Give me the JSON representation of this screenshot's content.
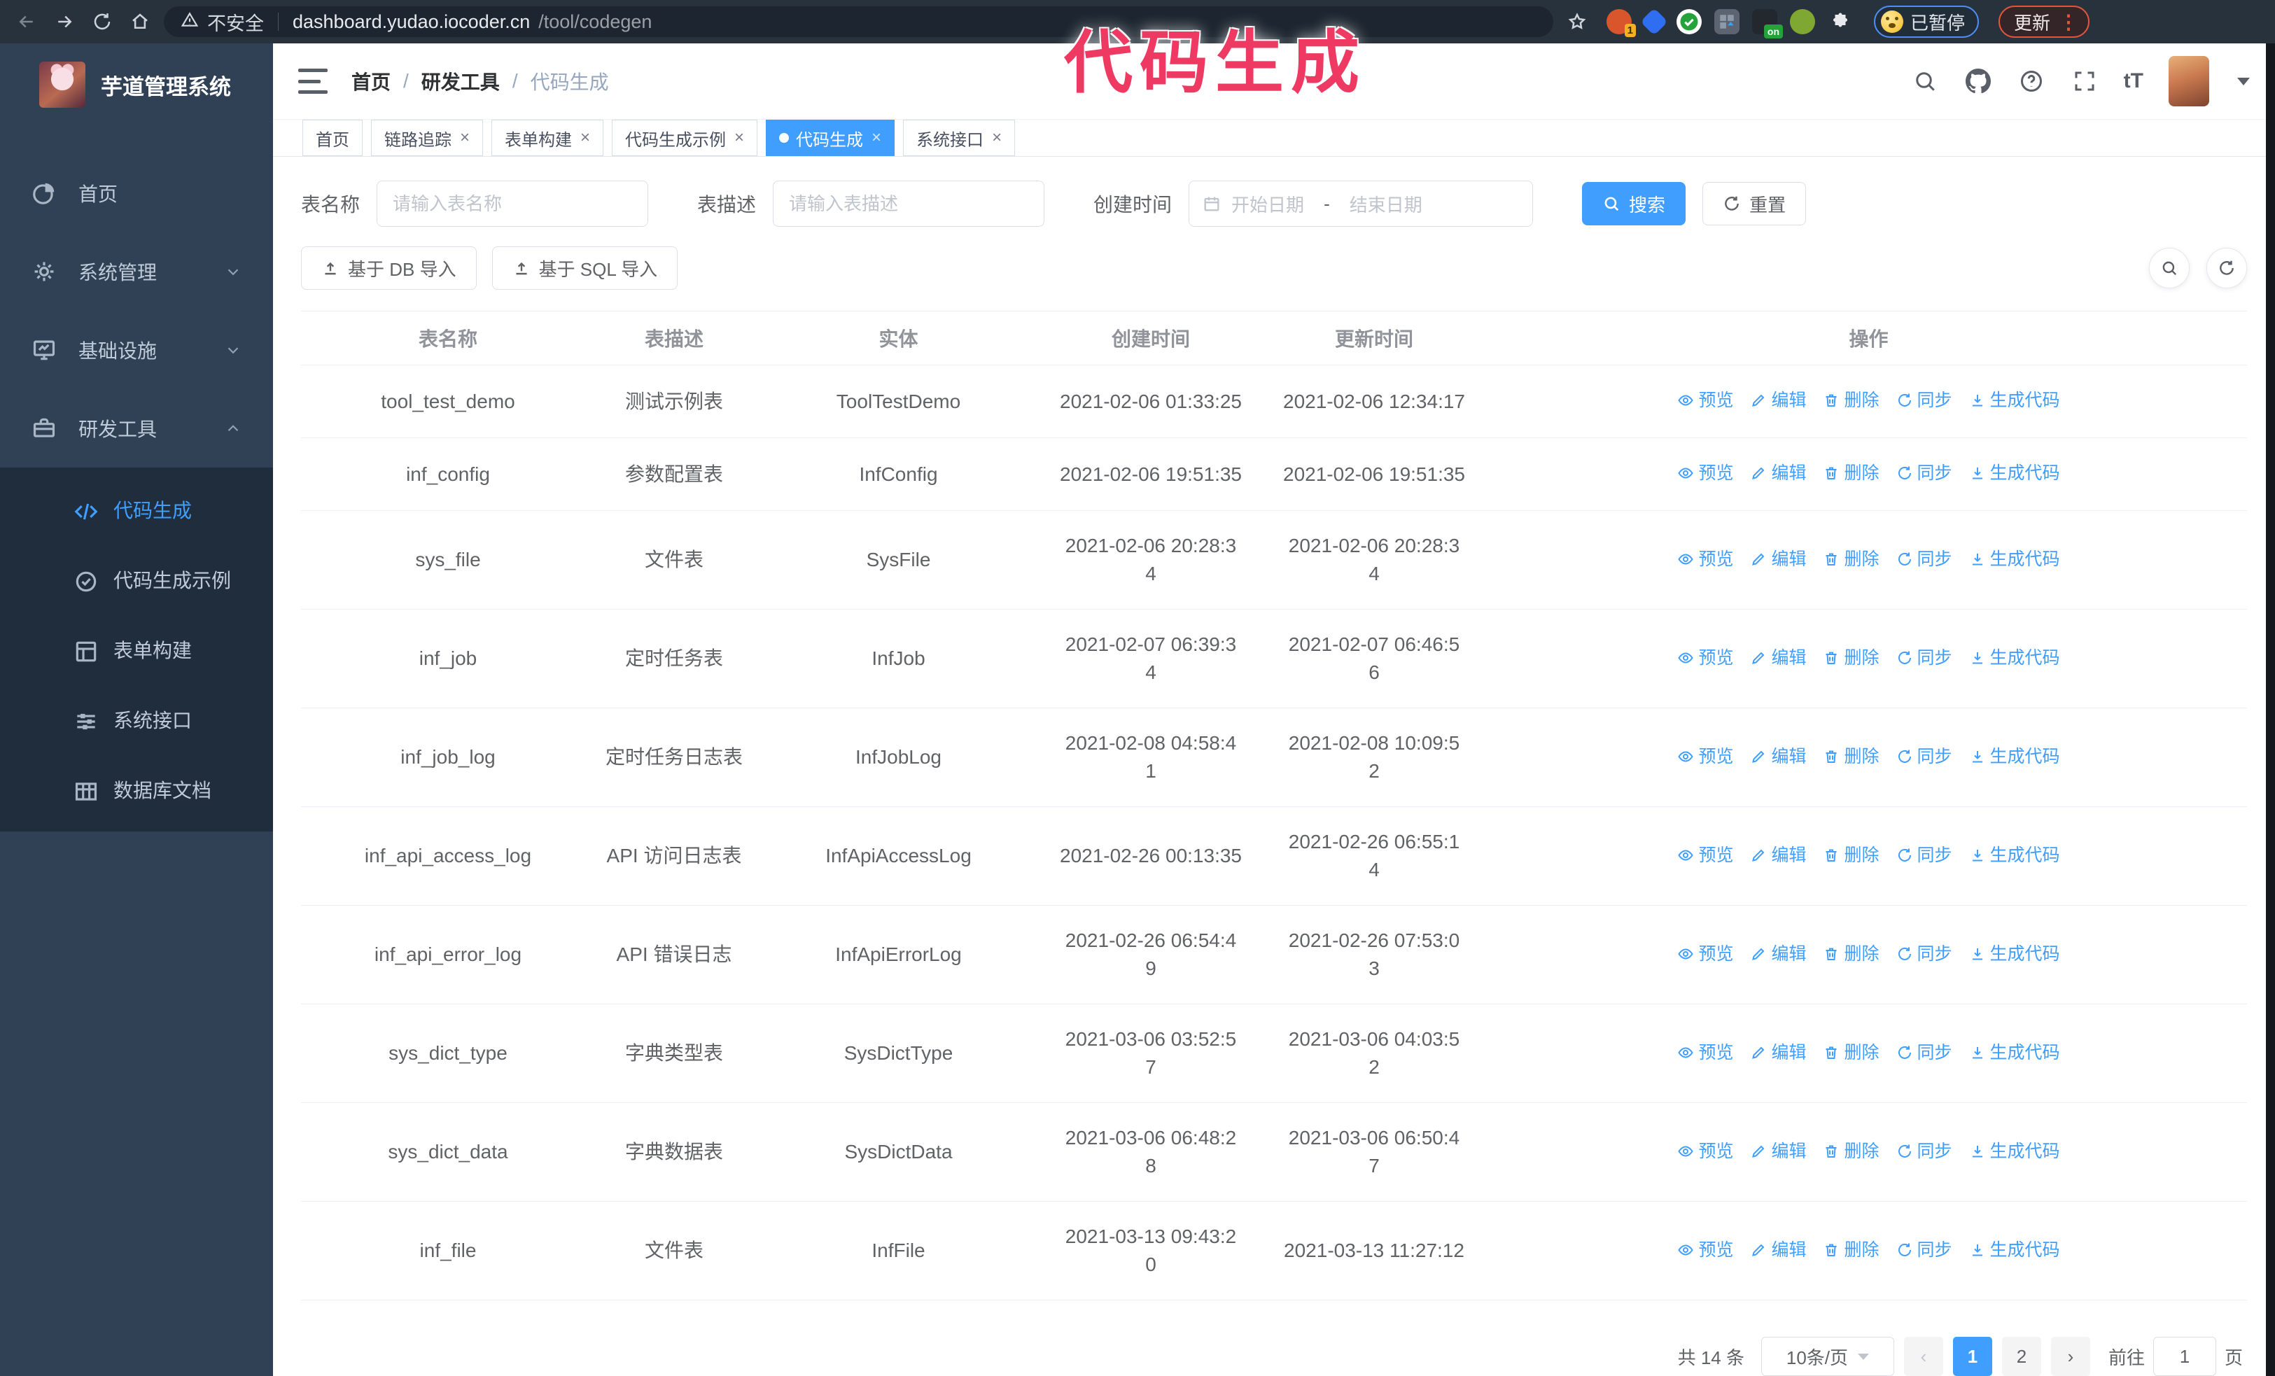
{
  "browser": {
    "security_label": "不安全",
    "url_host": "dashboard.yudao.iocoder.cn",
    "url_path": "/tool/codegen",
    "extension_badge": "1",
    "extension_on_badge": "on",
    "paused_badge": "已暂停",
    "update_button": "更新"
  },
  "annotation": {
    "text": "代码生成",
    "color": "#ee3a63"
  },
  "sidebar": {
    "logo_title": "芋道管理系统",
    "items": [
      {
        "label": "首页",
        "icon": "dashboard-icon",
        "chevron": ""
      },
      {
        "label": "系统管理",
        "icon": "gear-icon",
        "chevron": "down"
      },
      {
        "label": "基础设施",
        "icon": "infra-icon",
        "chevron": "down"
      },
      {
        "label": "研发工具",
        "icon": "tools-icon",
        "chevron": "up"
      }
    ],
    "subitems": [
      {
        "label": "代码生成",
        "icon": "code-icon",
        "active": true
      },
      {
        "label": "代码生成示例",
        "icon": "example-icon",
        "active": false
      },
      {
        "label": "表单构建",
        "icon": "form-icon",
        "active": false
      },
      {
        "label": "系统接口",
        "icon": "api-icon",
        "active": false
      },
      {
        "label": "数据库文档",
        "icon": "dbdoc-icon",
        "active": false
      }
    ]
  },
  "header": {
    "breadcrumb": [
      "首页",
      "研发工具",
      "代码生成"
    ]
  },
  "tabs": [
    {
      "label": "首页",
      "closable": false,
      "active": false
    },
    {
      "label": "链路追踪",
      "closable": true,
      "active": false
    },
    {
      "label": "表单构建",
      "closable": true,
      "active": false
    },
    {
      "label": "代码生成示例",
      "closable": true,
      "active": false
    },
    {
      "label": "代码生成",
      "closable": true,
      "active": true
    },
    {
      "label": "系统接口",
      "closable": true,
      "active": false
    }
  ],
  "search": {
    "name_label": "表名称",
    "name_placeholder": "请输入表名称",
    "desc_label": "表描述",
    "desc_placeholder": "请输入表描述",
    "time_label": "创建时间",
    "start_placeholder": "开始日期",
    "range_separator": "-",
    "end_placeholder": "结束日期",
    "search_button": "搜索",
    "reset_button": "重置"
  },
  "toolbar": {
    "import_db": "基于 DB 导入",
    "import_sql": "基于 SQL 导入"
  },
  "table": {
    "columns": [
      "表名称",
      "表描述",
      "实体",
      "创建时间",
      "更新时间",
      "操作"
    ],
    "actions": [
      "预览",
      "编辑",
      "删除",
      "同步",
      "生成代码"
    ],
    "rows": [
      {
        "name": "tool_test_demo",
        "desc": "测试示例表",
        "entity": "ToolTestDemo",
        "created": "2021-02-06 01:33:25",
        "updated": "2021-02-06 12:34:17"
      },
      {
        "name": "inf_config",
        "desc": "参数配置表",
        "entity": "InfConfig",
        "created": "2021-02-06 19:51:35",
        "updated": "2021-02-06 19:51:35"
      },
      {
        "name": "sys_file",
        "desc": "文件表",
        "entity": "SysFile",
        "created": "2021-02-06 20:28:3\n4",
        "updated": "2021-02-06 20:28:3\n4"
      },
      {
        "name": "inf_job",
        "desc": "定时任务表",
        "entity": "InfJob",
        "created": "2021-02-07 06:39:3\n4",
        "updated": "2021-02-07 06:46:5\n6"
      },
      {
        "name": "inf_job_log",
        "desc": "定时任务日志表",
        "entity": "InfJobLog",
        "created": "2021-02-08 04:58:4\n1",
        "updated": "2021-02-08 10:09:5\n2"
      },
      {
        "name": "inf_api_access_log",
        "desc": "API 访问日志表",
        "entity": "InfApiAccessLog",
        "created": "2021-02-26 00:13:35",
        "updated": "2021-02-26 06:55:1\n4"
      },
      {
        "name": "inf_api_error_log",
        "desc": "API 错误日志",
        "entity": "InfApiErrorLog",
        "created": "2021-02-26 06:54:4\n9",
        "updated": "2021-02-26 07:53:0\n3"
      },
      {
        "name": "sys_dict_type",
        "desc": "字典类型表",
        "entity": "SysDictType",
        "created": "2021-03-06 03:52:5\n7",
        "updated": "2021-03-06 04:03:5\n2"
      },
      {
        "name": "sys_dict_data",
        "desc": "字典数据表",
        "entity": "SysDictData",
        "created": "2021-03-06 06:48:2\n8",
        "updated": "2021-03-06 06:50:4\n7"
      },
      {
        "name": "inf_file",
        "desc": "文件表",
        "entity": "InfFile",
        "created": "2021-03-13 09:43:2\n0",
        "updated": "2021-03-13 11:27:12"
      }
    ]
  },
  "pagination": {
    "total": "共 14 条",
    "page_size": "10条/页",
    "pages": [
      "1",
      "2"
    ],
    "active_page": "1",
    "goto_label": "前往",
    "goto_value": "1",
    "page_unit": "页"
  },
  "colors": {
    "accent": "#409eff",
    "sidebar_bg": "#304156",
    "submenu_bg": "#1f2d3d"
  }
}
